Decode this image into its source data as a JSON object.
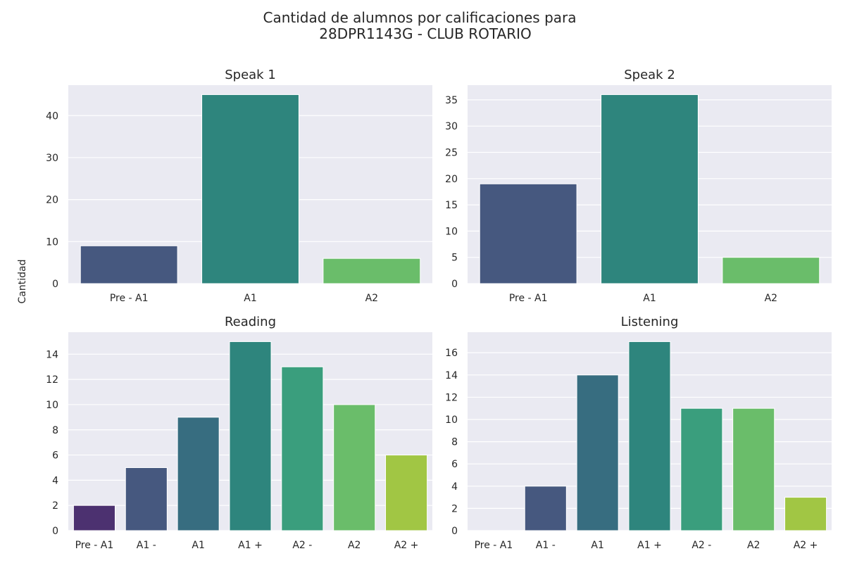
{
  "figure": {
    "title_line1": "Cantidad de alumnos por calificaciones para",
    "title_line2": "28DPR1143G - CLUB ROTARIO",
    "ylabel": "Cantidad"
  },
  "colors": {
    "panel_background": "#eaeaf2",
    "grid": "#ffffff",
    "text": "#262626"
  },
  "chart_data": [
    {
      "type": "bar",
      "title": "Speak 1",
      "categories": [
        "Pre - A1",
        "A1",
        "A2"
      ],
      "values": [
        9,
        45,
        6
      ],
      "colors": [
        "#46587f",
        "#2e857d",
        "#6abd6a"
      ],
      "ylim": [
        0,
        47.25
      ],
      "yticks": [
        0,
        10,
        20,
        30,
        40
      ],
      "grid": true
    },
    {
      "type": "bar",
      "title": "Speak 2",
      "categories": [
        "Pre - A1",
        "A1",
        "A2"
      ],
      "values": [
        19,
        36,
        5
      ],
      "colors": [
        "#46587f",
        "#2e857d",
        "#6abd6a"
      ],
      "ylim": [
        0,
        37.8
      ],
      "yticks": [
        0,
        5,
        10,
        15,
        20,
        25,
        30,
        35
      ],
      "grid": true
    },
    {
      "type": "bar",
      "title": "Reading",
      "categories": [
        "Pre - A1",
        "A1 -",
        "A1",
        "A1 +",
        "A2 -",
        "A2",
        "A2 +"
      ],
      "values": [
        2,
        5,
        9,
        15,
        13,
        10,
        6
      ],
      "colors": [
        "#4c3170",
        "#46587f",
        "#376d80",
        "#2e857d",
        "#3a9e7d",
        "#6abd6a",
        "#a1c644"
      ],
      "ylim": [
        0,
        15.75
      ],
      "yticks": [
        0,
        2,
        4,
        6,
        8,
        10,
        12,
        14
      ],
      "grid": true
    },
    {
      "type": "bar",
      "title": "Listening",
      "categories": [
        "Pre - A1",
        "A1 -",
        "A1",
        "A1 +",
        "A2 -",
        "A2",
        "A2 +"
      ],
      "values": [
        0,
        4,
        14,
        17,
        11,
        11,
        3
      ],
      "colors": [
        "#4c3170",
        "#46587f",
        "#376d80",
        "#2e857d",
        "#3a9e7d",
        "#6abd6a",
        "#a1c644"
      ],
      "ylim": [
        0,
        17.85
      ],
      "yticks": [
        0,
        2,
        4,
        6,
        8,
        10,
        12,
        14,
        16
      ],
      "grid": true
    }
  ]
}
